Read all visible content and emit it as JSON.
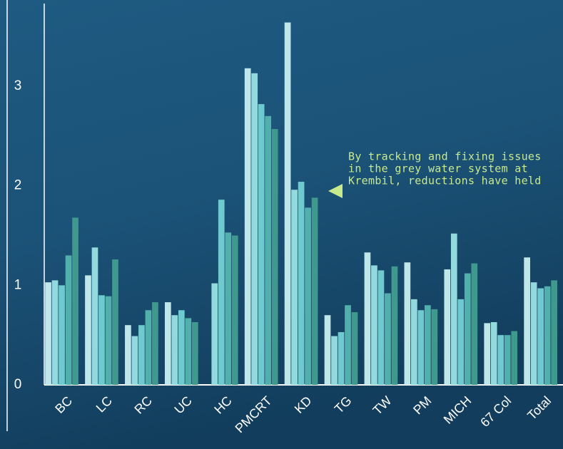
{
  "chart_data": {
    "type": "bar",
    "categories": [
      "BC",
      "LC",
      "RC",
      "UC",
      "HC",
      "PMCRT",
      "KD",
      "TG",
      "TW",
      "PM",
      "MICH",
      "67 Col",
      "Total"
    ],
    "series": [
      {
        "color": "#bfe6e8",
        "values": [
          1.03,
          1.1,
          0.6,
          0.83,
          null,
          3.18,
          3.64,
          0.7,
          1.33,
          1.23,
          1.16,
          0.62,
          1.28
        ]
      },
      {
        "color": "#93dade",
        "values": [
          1.05,
          1.38,
          0.49,
          0.7,
          1.02,
          3.13,
          1.96,
          0.49,
          1.2,
          0.86,
          1.52,
          0.63,
          1.03
        ]
      },
      {
        "color": "#6fcad0",
        "values": [
          1.0,
          0.9,
          0.6,
          0.75,
          1.86,
          2.82,
          2.04,
          0.53,
          1.15,
          0.75,
          0.86,
          0.5,
          0.97
        ]
      },
      {
        "color": "#52b0ac",
        "values": [
          1.3,
          0.89,
          0.75,
          0.67,
          1.53,
          2.7,
          1.78,
          0.8,
          0.92,
          0.8,
          1.12,
          0.5,
          0.99
        ]
      },
      {
        "color": "#3f998c",
        "values": [
          1.68,
          1.26,
          0.83,
          0.63,
          1.5,
          2.57,
          1.88,
          0.73,
          1.19,
          0.76,
          1.22,
          0.54,
          1.05
        ]
      }
    ],
    "ylim": [
      0,
      3.83
    ],
    "yticks": [
      0,
      1,
      2,
      3
    ],
    "annotation": [
      "By tracking and fixing issues",
      "in the grey water system at",
      "Krembil, reductions have held"
    ]
  }
}
